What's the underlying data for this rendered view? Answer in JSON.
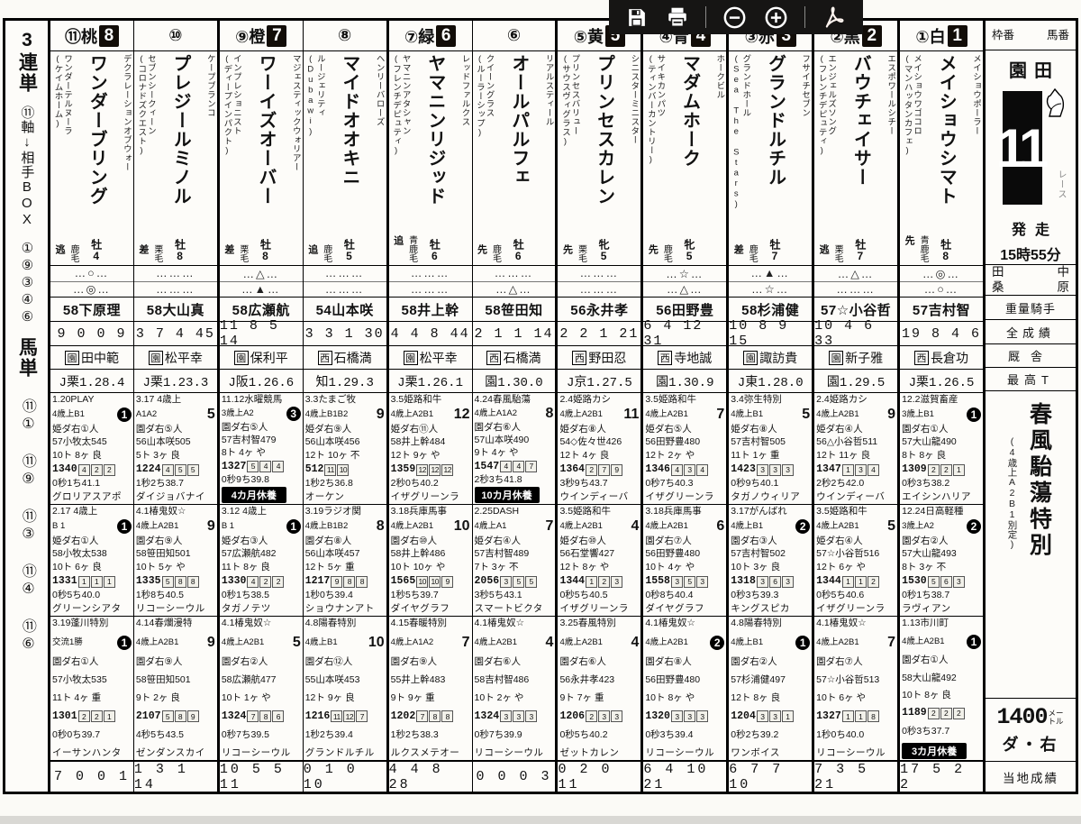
{
  "toolbar": {
    "save": "save",
    "print": "print",
    "zoom_out": "zoom-out",
    "zoom_in": "zoom-in",
    "pdf": "pdf"
  },
  "sidebar": {
    "bet_type_1": "3連単",
    "axis_note": "⑪軸↓相手BOX",
    "box_numbers": "①⑨③④⑥",
    "bet_type_2": "馬単",
    "pairs": [
      "⑪①",
      "⑪⑨",
      "⑪③",
      "⑪④",
      "⑪⑥"
    ]
  },
  "info": {
    "header_left": "枠番",
    "header_right": "馬番",
    "track": "園田",
    "race_no": "11",
    "race_label": "レース",
    "start_label": "発走",
    "start_time": "15時55分",
    "tipster_1": "田中",
    "tipster_2": "桑原",
    "row_weight_jockey": "重量騎手",
    "row_total_record": "全成績",
    "row_stable": "厩舎",
    "row_best_time": "最高T",
    "race_name": "春風駘蕩特別",
    "race_cond": "(4歳上A2B1別定)",
    "distance": "1400",
    "distance_unit": "メートル",
    "surface": "ダ・右",
    "local_label": "当地成績"
  },
  "horses": [
    {
      "num": "⑪桃",
      "frame": "8",
      "sire": "デクラレーションオブウォー",
      "name": "ワンダーブリング",
      "dam": "ワンダーテルヌーラ",
      "damsire": "(ケイムホーム)",
      "coat": "鹿毛",
      "style": "逃",
      "sexage": "牡4",
      "marks": [
        "…○…",
        "…◎…"
      ],
      "jockey": "58下原理",
      "record": "9 0 0 9",
      "trainer_pref": "園",
      "trainer": "田中範",
      "time": "J栗1.28.4",
      "past": [
        {
          "l1": "1.20PLAY",
          "cls": "4歳上B1",
          "fin": "1",
          "l3": "姫ダ右①人",
          "l4": "57小牧太545",
          "l5": "10ト 8ヶ 良",
          "time": "1340",
          "pos": [
            "4",
            "2",
            "2"
          ],
          "l7": "0秒1ち41.1",
          "winner": "グロリアスアポ"
        },
        {
          "l1": "2.17 4歳上",
          "cls": "B 1",
          "fin": "1",
          "l3": "姫ダ右①人",
          "l4": "58小牧太538",
          "l5": "10ト 6ヶ 良",
          "time": "1331",
          "pos": [
            "1",
            "1",
            "1"
          ],
          "l7": "0秒5ち40.0",
          "winner": "グリーンシアタ"
        },
        {
          "l1": "3.19蓬川特別",
          "cls": "交流1勝",
          "fin": "1",
          "l3": "園ダ右①人",
          "l4": "57小牧太535",
          "l5": "11ト 4ヶ 重",
          "time": "1301",
          "pos": [
            "2",
            "2",
            "1"
          ],
          "l7": "0秒0ち39.7",
          "winner": "イーサンハンタ"
        }
      ],
      "local": "7 0 0 1"
    },
    {
      "num": "⑩",
      "frame": null,
      "sire": "ケープブランコ",
      "name": "プレジールミノル",
      "dam": "セブンシークィーン",
      "damsire": "(コロナドズクエスト)",
      "coat": "栗毛",
      "style": "差",
      "sexage": "牡8",
      "marks": [
        "………",
        "………"
      ],
      "jockey": "58大山真",
      "record": "3 7 4 45",
      "trainer_pref": "園",
      "trainer": "松平幸",
      "time": "J栗1.23.3",
      "past": [
        {
          "l1": "3.17 4歳上",
          "cls": "A1A2",
          "fin": "5",
          "l3": "園ダ右⑤人",
          "l4": "56山本咲505",
          "l5": "5ト 3ヶ 良",
          "time": "1224",
          "pos": [
            "4",
            "5",
            "5"
          ],
          "l7": "1秒2ち38.7",
          "winner": "ダイジョバナイ"
        },
        {
          "l1": "4.1椿鬼奴☆",
          "cls": "4歳上A2B1",
          "fin": "9",
          "l3": "園ダ右⑨人",
          "l4": "58笹田知501",
          "l5": "10ト 5ヶ や",
          "time": "1335",
          "pos": [
            "5",
            "8",
            "8"
          ],
          "l7": "1秒8ち40.5",
          "winner": "リコーシーウル"
        },
        {
          "l1": "4.14春爛漫特",
          "cls": "4歳上A2B1",
          "fin": "9",
          "l3": "園ダ右⑨人",
          "l4": "58笹田知501",
          "l5": "9ト 2ヶ 良",
          "time": "2107",
          "pos": [
            "5",
            "8",
            "9"
          ],
          "l7": "4秒5ち43.5",
          "winner": "ゼンダンスカイ"
        }
      ],
      "local": "1 3 1 14"
    },
    {
      "num": "⑨橙",
      "frame": "7",
      "sire": "マジェスティックウォリアー",
      "name": "ワーイズオーバー",
      "dam": "インプレショニスト",
      "damsire": "(ディープインパクト)",
      "coat": "栗毛",
      "style": "差",
      "sexage": "牡8",
      "marks": [
        "…△…",
        "…▲…"
      ],
      "jockey": "58広瀬航",
      "record": "11 8 5 14",
      "trainer_pref": "園",
      "trainer": "保利平",
      "time": "J阪1.26.6",
      "past": [
        {
          "l1": "11.12水曜競馬",
          "cls": "3歳上A2",
          "fin": "3",
          "l3": "園ダ右⑤人",
          "l4": "57吉村智479",
          "l5": "8ト 4ヶ や",
          "time": "1327",
          "pos": [
            "5",
            "4",
            "4"
          ],
          "l7": "0秒9ち39.8",
          "rest": "4カ月休養"
        },
        {
          "l1": "3.12 4歳上",
          "cls": "B 1",
          "fin": "1",
          "l3": "姫ダ右③人",
          "l4": "57広瀬航482",
          "l5": "11ト 8ヶ 良",
          "time": "1330",
          "pos": [
            "4",
            "2",
            "2"
          ],
          "l7": "0秒1ち38.5",
          "winner": "タガノテツ"
        },
        {
          "l1": "4.1椿鬼奴☆",
          "cls": "4歳上A2B1",
          "fin": "5",
          "l3": "園ダ右②人",
          "l4": "58広瀬航477",
          "l5": "10ト 1ヶ や",
          "time": "1324",
          "pos": [
            "7",
            "8",
            "6"
          ],
          "l7": "0秒7ち39.5",
          "winner": "リコーシーウル"
        }
      ],
      "local": "10 5 5 11"
    },
    {
      "num": "⑧",
      "frame": null,
      "sire": "ヘンリーバローズ",
      "name": "マイドオオキニ",
      "dam": "ルージェリティ",
      "damsire": "(Dubawi)",
      "coat": "鹿毛",
      "style": "追",
      "sexage": "牡5",
      "marks": [
        "………",
        "………"
      ],
      "jockey": "54山本咲",
      "record": "3 3 1 30",
      "trainer_pref": "西",
      "trainer": "石橋満",
      "time": "知1.29.3",
      "past": [
        {
          "l1": "3.3たまご牧",
          "cls": "4歳上B1B2",
          "fin": "9",
          "l3": "姫ダ右⑨人",
          "l4": "56山本咲456",
          "l5": "12ト 10ヶ 不",
          "time": "512",
          "pos": [
            "11",
            "10"
          ],
          "l7": "1秒2ち36.8",
          "winner": "オーケン"
        },
        {
          "l1": "3.19ラジオ関",
          "cls": "4歳上B1B2",
          "fin": "8",
          "l3": "園ダ右⑧人",
          "l4": "56山本咲457",
          "l5": "12ト 5ヶ 重",
          "time": "1217",
          "pos": [
            "9",
            "8",
            "8"
          ],
          "l7": "1秒0ち39.4",
          "winner": "ショウナンアト"
        },
        {
          "l1": "4.8陽春特別",
          "cls": "4歳上B1",
          "fin": "10",
          "l3": "園ダ右⑫人",
          "l4": "55山本咲453",
          "l5": "12ト 9ヶ 良",
          "time": "1216",
          "pos": [
            "11",
            "12",
            "7"
          ],
          "l7": "1秒2ち39.4",
          "winner": "グランドルチル"
        }
      ],
      "local": "0 1 0 10"
    },
    {
      "num": "⑦緑",
      "frame": "6",
      "sire": "レッドファルクス",
      "name": "ヤマニンリジッド",
      "dam": "ヤマニンアタシャン",
      "damsire": "(フレンチデピュティ)",
      "coat": "青鹿毛",
      "style": "追",
      "sexage": "牡6",
      "marks": [
        "………",
        "………"
      ],
      "jockey": "58井上幹",
      "record": "4 4 8 44",
      "trainer_pref": "園",
      "trainer": "松平幸",
      "time": "J栗1.26.1",
      "past": [
        {
          "l1": "3.5姫路和牛",
          "cls": "4歳上A2B1",
          "fin": "12",
          "l3": "姫ダ右⑪人",
          "l4": "58井上幹484",
          "l5": "12ト 9ヶ や",
          "time": "1359",
          "pos": [
            "12",
            "12",
            "12"
          ],
          "l7": "2秒0ち40.2",
          "winner": "イザグリーンラ"
        },
        {
          "l1": "3.18兵庫馬事",
          "cls": "4歳上A2B1",
          "fin": "10",
          "l3": "園ダ右⑩人",
          "l4": "58井上幹486",
          "l5": "10ト 10ヶ や",
          "time": "1565",
          "pos": [
            "10",
            "10",
            "9"
          ],
          "l7": "1秒5ち39.7",
          "winner": "ダイヤグラフ"
        },
        {
          "l1": "4.15春暖特別",
          "cls": "4歳上A1A2",
          "fin": "7",
          "l3": "園ダ右⑨人",
          "l4": "55井上幹483",
          "l5": "9ト 9ヶ 重",
          "time": "1202",
          "pos": [
            "7",
            "8",
            "8"
          ],
          "l7": "1秒2ち38.3",
          "winner": "ルクスメテオー"
        }
      ],
      "local": "4 4 8 28"
    },
    {
      "num": "⑥",
      "frame": null,
      "sire": "リアルスティール",
      "name": "オールパルフェ",
      "dam": "クイーングラス",
      "damsire": "(ルーラーシップ)",
      "coat": "鹿毛",
      "style": "先",
      "sexage": "牡6",
      "marks": [
        "………",
        "…△…"
      ],
      "jockey": "58笹田知",
      "record": "2 1 1 14",
      "trainer_pref": "西",
      "trainer": "石橋満",
      "time": "園1.30.0",
      "past": [
        {
          "l1": "4.24春風駘蕩",
          "cls": "4歳上A1A2",
          "fin": "8",
          "l3": "園ダ右⑥人",
          "l4": "57山本咲490",
          "l5": "9ト 4ヶ や",
          "time": "1547",
          "pos": [
            "4",
            "4",
            "7"
          ],
          "l7": "2秒3ち41.8",
          "rest": "10カ月休養"
        },
        {
          "l1": "2.25DASH",
          "cls": "4歳上A1",
          "fin": "7",
          "l3": "姫ダ右④人",
          "l4": "57吉村智489",
          "l5": "7ト 3ヶ 不",
          "time": "2056",
          "pos": [
            "3",
            "5",
            "5"
          ],
          "l7": "3秒5ち43.1",
          "winner": "スマートビクタ"
        },
        {
          "l1": "4.1椿鬼奴☆",
          "cls": "4歳上A2B1",
          "fin": "4",
          "l3": "園ダ右⑥人",
          "l4": "58吉村智486",
          "l5": "10ト 2ヶ や",
          "time": "1324",
          "pos": [
            "3",
            "3",
            "3"
          ],
          "l7": "0秒7ち39.9",
          "winner": "リコーシーウル"
        }
      ],
      "local": "0 0 0 3"
    },
    {
      "num": "⑤黄",
      "frame": "5",
      "sire": "シニスターミニスター",
      "name": "プリンセスカレン",
      "dam": "プリンセスバリュー",
      "damsire": "(サウスヴィグラス)",
      "coat": "栗毛",
      "style": "先",
      "sexage": "牝5",
      "marks": [
        "………",
        "………"
      ],
      "jockey": "56永井孝",
      "record": "2 2 1 21",
      "trainer_pref": "西",
      "trainer": "野田忍",
      "time": "J京1.27.5",
      "past": [
        {
          "l1": "2.4姫路カシ",
          "cls": "4歳上A2B1",
          "fin": "11",
          "l3": "姫ダ右⑧人",
          "l4": "54◇佐々世426",
          "l5": "12ト 4ヶ 良",
          "time": "1364",
          "pos": [
            "2",
            "7",
            "9"
          ],
          "l7": "3秒9ち43.7",
          "winner": "ウインディーバ"
        },
        {
          "l1": "3.5姫路和牛",
          "cls": "4歳上A2B1",
          "fin": "4",
          "l3": "姫ダ右⑩人",
          "l4": "56石堂響427",
          "l5": "12ト 8ヶ や",
          "time": "1344",
          "pos": [
            "1",
            "2",
            "3"
          ],
          "l7": "0秒5ち40.5",
          "winner": "イザグリーンラ"
        },
        {
          "l1": "3.25春風特別",
          "cls": "4歳上A2B1",
          "fin": "4",
          "l3": "園ダ右⑥人",
          "l4": "56永井孝423",
          "l5": "9ト 7ヶ 重",
          "time": "1206",
          "pos": [
            "2",
            "3",
            "3"
          ],
          "l7": "0秒5ち40.2",
          "winner": "ゼットカレン"
        }
      ],
      "local": "0 2 0 11"
    },
    {
      "num": "④青",
      "frame": "4",
      "sire": "ホークビル",
      "name": "マダムホーク",
      "dam": "サイキカンパツ",
      "damsire": "(ティンバーカントリー)",
      "coat": "鹿毛",
      "style": "先",
      "sexage": "牝5",
      "marks": [
        "…☆…",
        "…△…"
      ],
      "jockey": "56田野豊",
      "record": "6 4 12 31",
      "trainer_pref": "西",
      "trainer": "寺地誠",
      "time": "園1.30.9",
      "past": [
        {
          "l1": "3.5姫路和牛",
          "cls": "4歳上A2B1",
          "fin": "7",
          "l3": "姫ダ右⑤人",
          "l4": "56田野豊480",
          "l5": "12ト 2ヶ や",
          "time": "1346",
          "pos": [
            "4",
            "3",
            "4"
          ],
          "l7": "0秒7ち40.3",
          "winner": "イザグリーンラ"
        },
        {
          "l1": "3.18兵庫馬事",
          "cls": "4歳上A2B1",
          "fin": "6",
          "l3": "園ダ右⑦人",
          "l4": "56田野豊480",
          "l5": "10ト 4ヶ や",
          "time": "1558",
          "pos": [
            "3",
            "5",
            "3"
          ],
          "l7": "0秒8ち40.4",
          "winner": "ダイヤグラフ"
        },
        {
          "l1": "4.1椿鬼奴☆",
          "cls": "4歳上A2B1",
          "fin": "2",
          "l3": "園ダ右⑧人",
          "l4": "56田野豊480",
          "l5": "10ト 8ヶ や",
          "time": "1320",
          "pos": [
            "3",
            "3",
            "3"
          ],
          "l7": "0秒3ち39.4",
          "winner": "リコーシーウル"
        }
      ],
      "local": "6 4 10 21"
    },
    {
      "num": "③赤",
      "frame": "3",
      "sire": "フサイチセブン",
      "name": "グランドルチル",
      "dam": "グランドホール",
      "damsire": "(Sea The Stars)",
      "coat": "鹿毛",
      "style": "差",
      "sexage": "牡7",
      "marks": [
        "…▲…",
        "…☆…"
      ],
      "jockey": "58杉浦健",
      "record": "10 8 9 15",
      "trainer_pref": "園",
      "trainer": "諏訪貴",
      "time": "J東1.28.0",
      "past": [
        {
          "l1": "3.4弥生特別",
          "cls": "4歳上B1",
          "fin": "5",
          "l3": "姫ダ右⑧人",
          "l4": "57吉村智505",
          "l5": "11ト 1ヶ 重",
          "time": "1423",
          "pos": [
            "3",
            "3",
            "3"
          ],
          "l7": "0秒9ち40.1",
          "winner": "タガノウィリア"
        },
        {
          "l1": "3.17がんばれ",
          "cls": "4歳上B1",
          "fin": "2",
          "l3": "園ダ右③人",
          "l4": "57吉村智502",
          "l5": "10ト 3ヶ 良",
          "time": "1318",
          "pos": [
            "3",
            "6",
            "3"
          ],
          "l7": "0秒3ち39.3",
          "winner": "キングスピカ"
        },
        {
          "l1": "4.8陽春特別",
          "cls": "4歳上B1",
          "fin": "1",
          "l3": "園ダ右②人",
          "l4": "57杉浦健497",
          "l5": "12ト 8ヶ 良",
          "time": "1204",
          "pos": [
            "3",
            "3",
            "1"
          ],
          "l7": "0秒2ち39.2",
          "winner": "ワンボイス"
        }
      ],
      "local": "6 7 7 10"
    },
    {
      "num": "②黒",
      "frame": "2",
      "sire": "エスポワールシチー",
      "name": "バウチェイサー",
      "dam": "エンジェルズソング",
      "damsire": "(フレンチデピュティ)",
      "coat": "栗毛",
      "style": "逃",
      "sexage": "牡7",
      "marks": [
        "…△…",
        "………"
      ],
      "jockey": "57☆小谷哲",
      "record": "10 4 6 33",
      "trainer_pref": "園",
      "trainer": "新子雅",
      "time": "園1.29.5",
      "past": [
        {
          "l1": "2.4姫路カシ",
          "cls": "4歳上A2B1",
          "fin": "9",
          "l3": "姫ダ右④人",
          "l4": "56△小谷哲511",
          "l5": "12ト 11ヶ 良",
          "time": "1347",
          "pos": [
            "1",
            "3",
            "4"
          ],
          "l7": "2秒2ち42.0",
          "winner": "ウインディーバ"
        },
        {
          "l1": "3.5姫路和牛",
          "cls": "4歳上A2B1",
          "fin": "5",
          "l3": "姫ダ右④人",
          "l4": "57☆小谷哲516",
          "l5": "12ト 6ヶ や",
          "time": "1344",
          "pos": [
            "1",
            "1",
            "2"
          ],
          "l7": "0秒5ち40.6",
          "winner": "イザグリーンラ"
        },
        {
          "l1": "4.1椿鬼奴☆",
          "cls": "4歳上A2B1",
          "fin": "7",
          "l3": "園ダ右⑦人",
          "l4": "57☆小谷哲513",
          "l5": "10ト 6ヶ や",
          "time": "1327",
          "pos": [
            "1",
            "1",
            "8"
          ],
          "l7": "1秒0ち40.0",
          "winner": "リコーシーウル"
        }
      ],
      "local": "7 3 5 21"
    },
    {
      "num": "①白",
      "frame": "1",
      "sire": "メイショウポーラー",
      "name": "メイショウシマト",
      "dam": "メイショウワゴコロ",
      "damsire": "(マンハッタンカフェ)",
      "coat": "青鹿毛",
      "style": "先",
      "sexage": "牡8",
      "marks": [
        "…◎…",
        "…○…"
      ],
      "jockey": "57吉村智",
      "record": "19 8 4 6",
      "trainer_pref": "西",
      "trainer": "長倉功",
      "time": "J栗1.26.5",
      "past": [
        {
          "l1": "12.2滋賀畜産",
          "cls": "3歳上B1",
          "fin": "1",
          "l3": "園ダ右①人",
          "l4": "57大山龍490",
          "l5": "8ト 8ヶ 良",
          "time": "1309",
          "pos": [
            "2",
            "2",
            "1"
          ],
          "l7": "0秒3ち38.2",
          "winner": "エイシンハリア"
        },
        {
          "l1": "12.24日高軽種",
          "cls": "3歳上A2",
          "fin": "2",
          "l3": "園ダ右②人",
          "l4": "57大山龍493",
          "l5": "8ト 3ヶ 不",
          "time": "1530",
          "pos": [
            "5",
            "6",
            "3"
          ],
          "l7": "0秒1ち38.7",
          "winner": "ラヴィアン"
        },
        {
          "l1": "1.13市川町",
          "cls": "4歳上A2B1",
          "fin": "1",
          "l3": "園ダ右①人",
          "l4": "58大山龍492",
          "l5": "10ト 8ヶ 良",
          "time": "1189",
          "pos": [
            "2",
            "2",
            "2"
          ],
          "l7": "0秒3ち37.7",
          "rest": "3カ月休養"
        }
      ],
      "local": "17 5 2 2"
    }
  ]
}
